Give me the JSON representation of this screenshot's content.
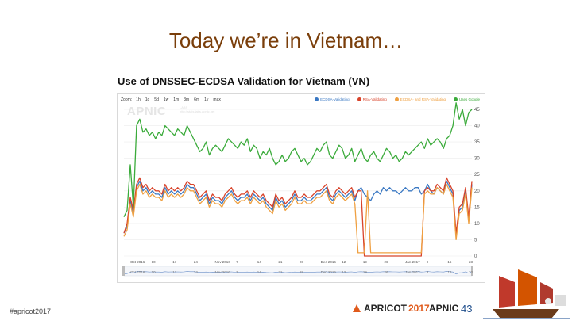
{
  "slide": {
    "title": "Today we’re in Vietnam…",
    "footer_hashtag": "#apricot2017",
    "page_number": "43",
    "logo_apricot": "APRICOT",
    "logo_apricot_year": "2017",
    "logo_apnic": "APNIC"
  },
  "chart_panel": {
    "heading": "Use of DNSSEC-ECDSA Validation for Vietnam (VN)",
    "zoom_label": "Zoom:",
    "zoom_buttons": [
      "1h",
      "1d",
      "5d",
      "1w",
      "1m",
      "3m",
      "6m",
      "1y",
      "max"
    ],
    "watermark": "APNIC",
    "watermark_sub": "LABS",
    "watermark_url": "http://stats.labs.apnic.net",
    "colors": {
      "ecdsa": "#3a78c3",
      "rsa": "#d8432a",
      "ecdsa_and_rsa": "#efa041",
      "google": "#3bab3b"
    }
  },
  "chart_data": {
    "type": "line",
    "title": "Use of DNSSEC-ECDSA Validation for Vietnam (VN)",
    "xlabel": "",
    "ylabel": "",
    "ylim": [
      0,
      45
    ],
    "yticks": [
      0,
      5,
      10,
      15,
      20,
      25,
      30,
      35,
      40,
      45
    ],
    "x_tick_labels": [
      "Oct 2016",
      "10",
      "17",
      "24",
      "Nov 2016",
      "7",
      "14",
      "21",
      "28",
      "Dec 2016",
      "12",
      "19",
      "26",
      "Jan 2017",
      "9",
      "16",
      "23"
    ],
    "grid": true,
    "legend": "top-right",
    "series": [
      {
        "name": "ECDSA-Validating",
        "color": "#3a78c3",
        "values": [
          7,
          9,
          17,
          13,
          21,
          23,
          20,
          21,
          19,
          20,
          19,
          19,
          18,
          21,
          19,
          20,
          19,
          20,
          19,
          20,
          22,
          21,
          21,
          19,
          17,
          18,
          19,
          16,
          18,
          17,
          17,
          16,
          18,
          19,
          20,
          18,
          17,
          18,
          18,
          19,
          17,
          19,
          18,
          17,
          18,
          16,
          15,
          14,
          18,
          16,
          17,
          15,
          16,
          17,
          19,
          17,
          17,
          18,
          17,
          17,
          18,
          19,
          19,
          20,
          21,
          18,
          17,
          19,
          20,
          19,
          18,
          19,
          20,
          17,
          20,
          21,
          19,
          18,
          17,
          19,
          20,
          19,
          21,
          20,
          21,
          20,
          20,
          19,
          20,
          21,
          20,
          20,
          21,
          21,
          19,
          20,
          22,
          20,
          19,
          21,
          20,
          19,
          23,
          21,
          19,
          6,
          14,
          15,
          20,
          11,
          22
        ]
      },
      {
        "name": "RSA-Validating",
        "color": "#d8432a",
        "values": [
          7,
          10,
          18,
          14,
          22,
          24,
          21,
          22,
          20,
          21,
          20,
          20,
          19,
          22,
          20,
          21,
          20,
          21,
          20,
          21,
          23,
          22,
          22,
          20,
          18,
          19,
          20,
          17,
          19,
          18,
          18,
          17,
          19,
          20,
          21,
          19,
          18,
          19,
          19,
          20,
          18,
          20,
          19,
          18,
          19,
          17,
          16,
          15,
          19,
          17,
          18,
          16,
          17,
          18,
          20,
          18,
          18,
          19,
          18,
          18,
          19,
          20,
          20,
          21,
          22,
          19,
          18,
          20,
          21,
          20,
          19,
          20,
          21,
          18,
          20,
          20,
          0,
          0,
          0,
          0,
          0,
          0,
          0,
          0,
          0,
          0,
          0,
          0,
          0,
          0,
          0,
          0,
          0,
          0,
          0,
          20,
          21,
          20,
          20,
          22,
          21,
          20,
          24,
          22,
          20,
          7,
          15,
          16,
          21,
          12,
          23
        ]
      },
      {
        "name": "ECDSA- and RSA-Validating",
        "color": "#efa041",
        "values": [
          6,
          8,
          16,
          12,
          20,
          22,
          19,
          20,
          18,
          19,
          18,
          18,
          17,
          20,
          18,
          19,
          18,
          19,
          18,
          19,
          21,
          20,
          20,
          18,
          16,
          17,
          18,
          15,
          17,
          16,
          16,
          15,
          17,
          18,
          19,
          17,
          16,
          17,
          17,
          18,
          16,
          18,
          17,
          16,
          17,
          15,
          14,
          13,
          17,
          15,
          16,
          14,
          15,
          16,
          18,
          16,
          16,
          17,
          16,
          16,
          17,
          18,
          18,
          19,
          20,
          17,
          16,
          18,
          19,
          18,
          17,
          18,
          19,
          16,
          1,
          1,
          1,
          20,
          1,
          1,
          1,
          1,
          1,
          1,
          1,
          1,
          1,
          1,
          1,
          1,
          1,
          1,
          1,
          1,
          1,
          19,
          20,
          19,
          19,
          21,
          20,
          19,
          22,
          20,
          18,
          5,
          13,
          14,
          19,
          10,
          21
        ]
      },
      {
        "name": "Uses Google",
        "color": "#3bab3b",
        "values": [
          12,
          14,
          28,
          15,
          40,
          42,
          38,
          39,
          37,
          38,
          36,
          38,
          37,
          40,
          39,
          38,
          37,
          39,
          38,
          37,
          40,
          38,
          36,
          34,
          32,
          33,
          35,
          31,
          33,
          34,
          33,
          32,
          34,
          36,
          35,
          34,
          33,
          35,
          34,
          36,
          32,
          34,
          33,
          30,
          32,
          31,
          33,
          30,
          28,
          29,
          31,
          29,
          30,
          32,
          33,
          31,
          29,
          30,
          28,
          29,
          31,
          33,
          32,
          34,
          35,
          31,
          30,
          32,
          34,
          33,
          30,
          31,
          33,
          29,
          31,
          33,
          30,
          29,
          31,
          32,
          30,
          29,
          31,
          33,
          32,
          30,
          31,
          29,
          30,
          32,
          31,
          32,
          33,
          34,
          35,
          33,
          36,
          34,
          35,
          36,
          35,
          33,
          36,
          37,
          40,
          47,
          42,
          45,
          40,
          44,
          45
        ]
      }
    ]
  }
}
